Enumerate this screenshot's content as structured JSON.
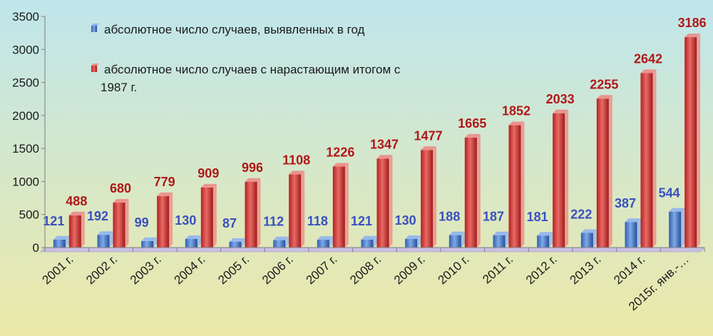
{
  "chart_data": {
    "type": "bar",
    "categories": [
      "2001 г.",
      "2002 г.",
      "2003 г.",
      "2004 г.",
      "2005 г.",
      "2006 г.",
      "2007 г.",
      "2008 г.",
      "2009 г.",
      "2010 г.",
      "2011 г.",
      "2012 г.",
      "2013 г.",
      "2014 г.",
      "2015г. янв.-…"
    ],
    "series": [
      {
        "name": "абсолютное число случаев, выявленных в год",
        "color": "#3A72C8",
        "label_color": "#3A4FC0",
        "values": [
          121,
          192,
          99,
          130,
          87,
          112,
          118,
          121,
          130,
          188,
          187,
          181,
          222,
          387,
          544
        ]
      },
      {
        "name": "абсолютное число случаев с нарастающим итогом  с 1987 г.",
        "color": "#C8302E",
        "label_color": "#B01818",
        "values": [
          488,
          680,
          779,
          909,
          996,
          1108,
          1226,
          1347,
          1477,
          1665,
          1852,
          2033,
          2255,
          2642,
          3186
        ]
      }
    ],
    "y_ticks": [
      "0",
      "500",
      "1000",
      "1500",
      "2000",
      "2500",
      "3000",
      "3500"
    ],
    "ylim": [
      0,
      3500
    ],
    "legend_position": "top-left",
    "legend": [
      {
        "line1": "абсолютное число случаев, выявленных в год",
        "line2": ""
      },
      {
        "line1": "абсолютное число случаев с нарастающим итогом  с",
        "line2": "1987 г."
      }
    ],
    "background_top": "#BFE6EC",
    "background_bottom": "#ECE9A8",
    "floor_color": "#C9BFE0"
  }
}
